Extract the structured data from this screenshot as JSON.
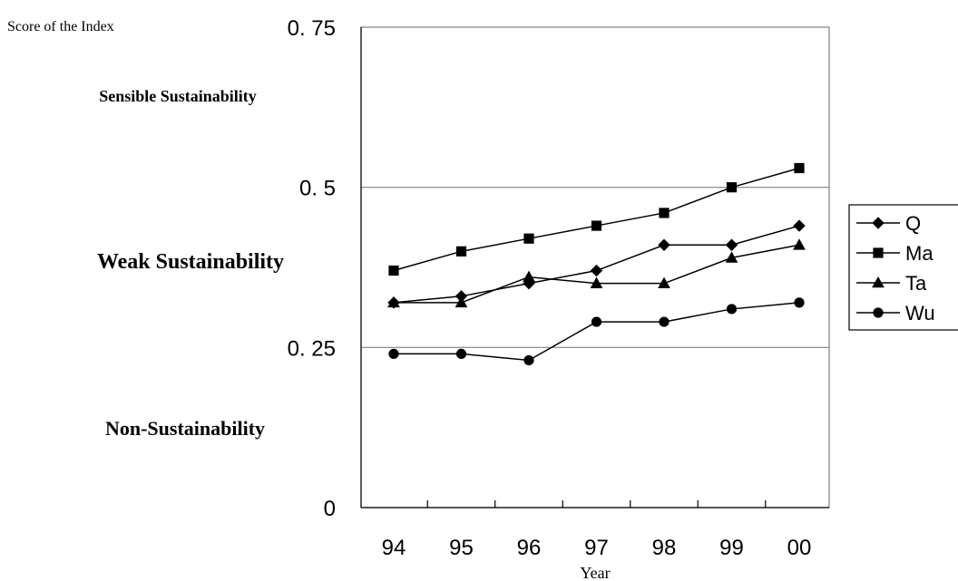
{
  "chart_data": {
    "type": "line",
    "ylabel": "Score of the Index",
    "xlabel": "Year",
    "categories": [
      "94",
      "95",
      "96",
      "97",
      "98",
      "99",
      "00"
    ],
    "ylim": [
      0,
      0.75
    ],
    "yticks": [
      0,
      0.25,
      0.5,
      0.75
    ],
    "ytick_labels": [
      "0",
      "0. 25",
      "0. 5",
      "0. 75"
    ],
    "horizontal_gridlines": [
      0.25,
      0.5
    ],
    "zones": [
      {
        "label": "Sensible Sustainability",
        "range": [
          0.5,
          0.75
        ]
      },
      {
        "label": "Weak Sustainability",
        "range": [
          0.25,
          0.5
        ]
      },
      {
        "label": "Non-Sustainability",
        "range": [
          0,
          0.25
        ]
      }
    ],
    "legend_position": "right, clipped",
    "series": [
      {
        "name": "Q",
        "marker": "diamond",
        "values": [
          0.32,
          0.33,
          0.35,
          0.37,
          0.41,
          0.41,
          0.44
        ]
      },
      {
        "name": "Ma",
        "marker": "square",
        "values": [
          0.37,
          0.4,
          0.42,
          0.44,
          0.46,
          0.5,
          0.53
        ]
      },
      {
        "name": "Ta",
        "marker": "triangle",
        "values": [
          0.32,
          0.32,
          0.36,
          0.35,
          0.35,
          0.39,
          0.41
        ]
      },
      {
        "name": "Wu",
        "marker": "circle",
        "values": [
          0.24,
          0.24,
          0.23,
          0.29,
          0.29,
          0.31,
          0.32
        ]
      }
    ]
  }
}
